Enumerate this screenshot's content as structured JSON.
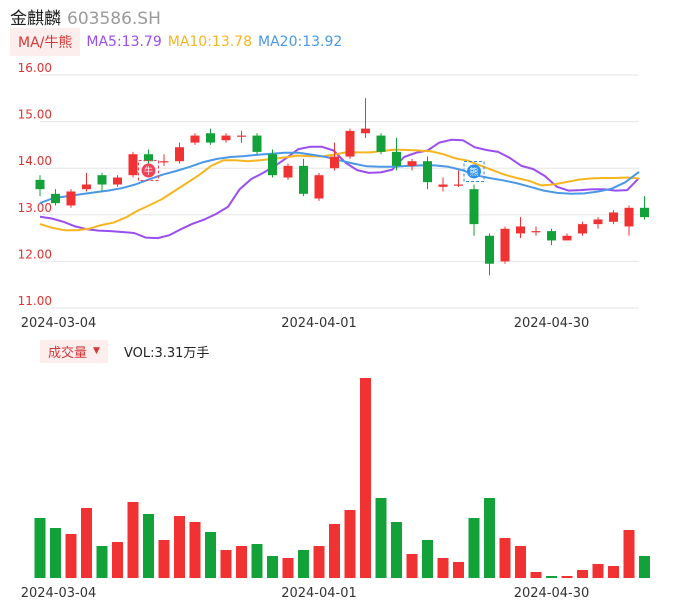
{
  "header": {
    "name": "金麒麟",
    "code": "603586.SH"
  },
  "ma_bar": {
    "toggle_label": "MA/牛熊",
    "items": [
      {
        "label": "MA5:13.79",
        "color": "#9b4ef0"
      },
      {
        "label": "MA10:13.78",
        "color": "#f6b51f"
      },
      {
        "label": "MA20:13.92",
        "color": "#4a98e6"
      }
    ]
  },
  "volume_bar": {
    "toggle_label": "成交量",
    "vol_label": "VOL:3.31万手"
  },
  "markers": {
    "bull": "牛",
    "bear": "熊"
  },
  "colors": {
    "up": "#f03232",
    "down": "#13a13a",
    "grid": "#e6e6e6",
    "axis_text": "#d33"
  },
  "chart_data": {
    "type": "candlestick",
    "price_axis": {
      "ylim": [
        11,
        16
      ],
      "ticks": [
        "16.00",
        "15.00",
        "14.00",
        "13.00",
        "12.00",
        "11.00"
      ]
    },
    "x_tick_labels": [
      {
        "index": 1,
        "label": "2024-03-04"
      },
      {
        "index": 18,
        "label": "2024-04-01"
      },
      {
        "index": 33,
        "label": "2024-04-30"
      }
    ],
    "candles": [
      {
        "o": 13.75,
        "c": 13.55,
        "h": 13.85,
        "l": 13.4
      },
      {
        "o": 13.45,
        "c": 13.25,
        "h": 13.55,
        "l": 13.2
      },
      {
        "o": 13.2,
        "c": 13.5,
        "h": 13.55,
        "l": 13.15
      },
      {
        "o": 13.55,
        "c": 13.65,
        "h": 13.9,
        "l": 13.5
      },
      {
        "o": 13.85,
        "c": 13.65,
        "h": 13.9,
        "l": 13.5
      },
      {
        "o": 13.65,
        "c": 13.8,
        "h": 13.85,
        "l": 13.6
      },
      {
        "o": 13.85,
        "c": 14.3,
        "h": 14.35,
        "l": 13.8
      },
      {
        "o": 14.3,
        "c": 14.15,
        "h": 14.4,
        "l": 14.05
      },
      {
        "o": 14.15,
        "c": 14.15,
        "h": 14.3,
        "l": 14.05
      },
      {
        "o": 14.15,
        "c": 14.45,
        "h": 14.55,
        "l": 14.1
      },
      {
        "o": 14.55,
        "c": 14.7,
        "h": 14.75,
        "l": 14.5
      },
      {
        "o": 14.75,
        "c": 14.55,
        "h": 14.85,
        "l": 14.5
      },
      {
        "o": 14.6,
        "c": 14.7,
        "h": 14.75,
        "l": 14.55
      },
      {
        "o": 14.7,
        "c": 14.7,
        "h": 14.8,
        "l": 14.55
      },
      {
        "o": 14.7,
        "c": 14.35,
        "h": 14.75,
        "l": 14.3
      },
      {
        "o": 14.3,
        "c": 13.85,
        "h": 14.4,
        "l": 13.8
      },
      {
        "o": 13.8,
        "c": 14.05,
        "h": 14.1,
        "l": 13.75
      },
      {
        "o": 14.05,
        "c": 13.45,
        "h": 14.2,
        "l": 13.4
      },
      {
        "o": 13.35,
        "c": 13.85,
        "h": 13.9,
        "l": 13.3
      },
      {
        "o": 14.0,
        "c": 14.25,
        "h": 14.55,
        "l": 13.95
      },
      {
        "o": 14.25,
        "c": 14.8,
        "h": 14.85,
        "l": 14.2
      },
      {
        "o": 14.75,
        "c": 14.85,
        "h": 15.5,
        "l": 14.65
      },
      {
        "o": 14.7,
        "c": 14.35,
        "h": 14.75,
        "l": 14.3
      },
      {
        "o": 14.35,
        "c": 14.05,
        "h": 14.65,
        "l": 13.95
      },
      {
        "o": 14.05,
        "c": 14.15,
        "h": 14.2,
        "l": 13.95
      },
      {
        "o": 14.15,
        "c": 13.7,
        "h": 14.25,
        "l": 13.55
      },
      {
        "o": 13.6,
        "c": 13.65,
        "h": 13.8,
        "l": 13.5
      },
      {
        "o": 13.65,
        "c": 13.65,
        "h": 13.95,
        "l": 13.6
      },
      {
        "o": 13.55,
        "c": 12.8,
        "h": 13.65,
        "l": 12.55
      },
      {
        "o": 12.55,
        "c": 11.95,
        "h": 12.6,
        "l": 11.7
      },
      {
        "o": 12.0,
        "c": 12.7,
        "h": 12.75,
        "l": 11.95
      },
      {
        "o": 12.6,
        "c": 12.75,
        "h": 12.95,
        "l": 12.5
      },
      {
        "o": 12.65,
        "c": 12.65,
        "h": 12.75,
        "l": 12.55
      },
      {
        "o": 12.65,
        "c": 12.45,
        "h": 12.7,
        "l": 12.35
      },
      {
        "o": 12.45,
        "c": 12.55,
        "h": 12.6,
        "l": 12.45
      },
      {
        "o": 12.6,
        "c": 12.8,
        "h": 12.85,
        "l": 12.55
      },
      {
        "o": 12.8,
        "c": 12.9,
        "h": 12.95,
        "l": 12.7
      },
      {
        "o": 12.85,
        "c": 13.05,
        "h": 13.1,
        "l": 12.8
      },
      {
        "o": 12.75,
        "c": 13.15,
        "h": 13.2,
        "l": 12.55
      },
      {
        "o": 13.15,
        "c": 12.95,
        "h": 13.4,
        "l": 12.9
      }
    ],
    "ma_lines": [
      {
        "name": "MA5",
        "color": "#9b4ef0",
        "values": [
          12.96,
          12.92,
          12.85,
          12.75,
          12.69,
          12.66,
          12.65,
          12.63,
          12.61,
          12.51,
          12.5,
          12.56,
          12.69,
          12.81,
          12.9,
          13.02,
          13.17,
          13.55,
          13.77,
          13.9,
          14.05,
          14.22,
          14.41,
          14.46,
          14.46,
          14.38,
          14.12,
          13.96,
          13.9,
          13.91,
          13.97,
          14.24,
          14.33,
          14.38,
          14.55,
          14.61,
          14.6,
          14.45,
          14.39,
          14.35,
          14.22,
          14.05,
          13.98,
          13.83,
          13.6,
          13.52,
          13.53,
          13.55,
          13.55,
          13.52,
          13.53,
          13.79
        ]
      },
      {
        "name": "MA10",
        "color": "#f6b51f",
        "values": [
          12.8,
          12.72,
          12.67,
          12.67,
          12.7,
          12.78,
          12.83,
          12.94,
          13.09,
          13.21,
          13.34,
          13.51,
          13.68,
          13.85,
          14.05,
          14.17,
          14.17,
          14.15,
          14.17,
          14.2,
          14.23,
          14.27,
          14.26,
          14.25,
          14.29,
          14.34,
          14.34,
          14.34,
          14.37,
          14.4,
          14.39,
          14.38,
          14.36,
          14.3,
          14.21,
          14.16,
          14.06,
          13.96,
          13.86,
          13.79,
          13.73,
          13.63,
          13.65,
          13.7,
          13.75,
          13.78,
          13.79,
          13.79,
          13.8,
          13.78
        ]
      },
      {
        "name": "MA20",
        "color": "#4a98e6",
        "values": [
          13.25,
          13.36,
          13.4,
          13.44,
          13.48,
          13.52,
          13.57,
          13.65,
          13.76,
          13.86,
          13.94,
          14.03,
          14.13,
          14.2,
          14.24,
          14.26,
          14.29,
          14.31,
          14.33,
          14.33,
          14.29,
          14.24,
          14.17,
          14.1,
          14.04,
          14.03,
          14.03,
          14.05,
          14.06,
          14.06,
          14.03,
          13.96,
          13.85,
          13.79,
          13.74,
          13.68,
          13.6,
          13.52,
          13.47,
          13.45,
          13.46,
          13.5,
          13.56,
          13.7,
          13.92
        ]
      }
    ],
    "volume": {
      "ylim": [
        0,
        100
      ],
      "values": [
        30,
        25,
        22,
        35,
        16,
        18,
        38,
        32,
        19,
        31,
        28,
        23,
        14,
        16,
        17,
        11,
        10,
        14,
        16,
        27,
        34,
        100,
        40,
        28,
        12,
        19,
        10,
        8,
        30,
        40,
        20,
        16,
        3,
        1,
        1,
        4,
        7,
        6,
        24,
        11
      ]
    }
  }
}
